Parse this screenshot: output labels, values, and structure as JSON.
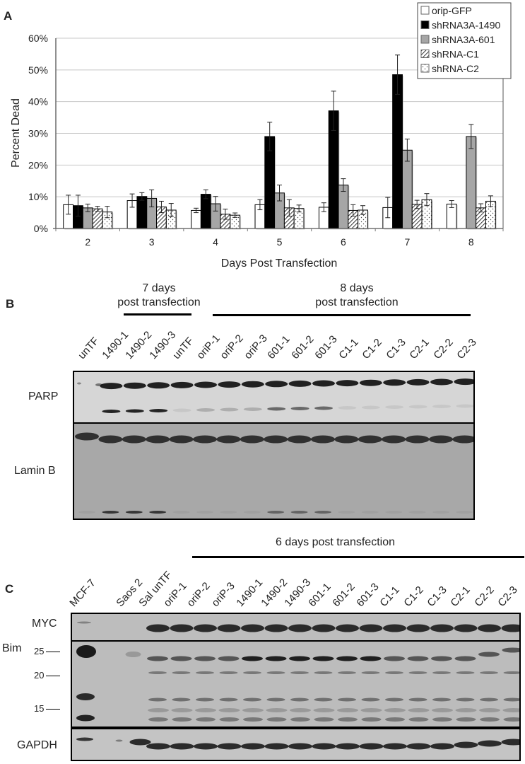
{
  "panels": {
    "a": {
      "letter": "A"
    },
    "b": {
      "letter": "B",
      "groups": [
        {
          "line1": "7 days",
          "line2": "post transfection"
        },
        {
          "line1": "8 days",
          "line2": "post transfection"
        }
      ],
      "lanes": [
        "unTF",
        "1490-1",
        "1490-2",
        "1490-3",
        "unTF",
        "oriP-1",
        "oriP-2",
        "oriP-3",
        "601-1",
        "601-2",
        "601-3",
        "C1-1",
        "C1-2",
        "C1-3",
        "C2-1",
        "C2-2",
        "C2-3"
      ],
      "blots": [
        {
          "label": "PARP"
        },
        {
          "label": "Lamin B"
        }
      ]
    },
    "c": {
      "letter": "C",
      "group": "6 days post transfection",
      "lanes": [
        "MCF-7",
        "Saos 2",
        "Sal unTF",
        "oriP-1",
        "oriP-2",
        "oriP-3",
        "1490-1",
        "1490-2",
        "1490-3",
        "601-1",
        "601-2",
        "601-3",
        "C1-1",
        "C1-2",
        "C1-3",
        "C2-1",
        "C2-2",
        "C2-3"
      ],
      "blots": [
        {
          "label": "MYC"
        },
        {
          "label": "Bim",
          "markers": [
            "25",
            "20",
            "15"
          ]
        },
        {
          "label": "GAPDH"
        }
      ]
    }
  },
  "chart_data": {
    "type": "bar",
    "title": "",
    "xlabel": "Days Post Transfection",
    "ylabel": "Percent Dead",
    "categories": [
      "2",
      "3",
      "4",
      "5",
      "6",
      "7",
      "8"
    ],
    "ylim": [
      0,
      60
    ],
    "yticks": [
      "0%",
      "10%",
      "20%",
      "30%",
      "40%",
      "50%",
      "60%"
    ],
    "grid": true,
    "legend_position": "top-right",
    "series": [
      {
        "name": "orip-GFP",
        "pattern": "white",
        "values": [
          7.5,
          8.8,
          5.7,
          7.5,
          6.7,
          6.6,
          7.7
        ],
        "errors": [
          3.0,
          2.1,
          0.7,
          1.6,
          1.4,
          3.2,
          1.1
        ]
      },
      {
        "name": "shRNA3A-1490",
        "pattern": "black",
        "values": [
          7.2,
          10.1,
          10.8,
          29.0,
          37.1,
          48.5,
          null
        ],
        "errors": [
          3.3,
          1.2,
          1.4,
          4.5,
          6.2,
          6.2,
          null
        ]
      },
      {
        "name": "shRNA3A-601",
        "pattern": "gray",
        "values": [
          6.5,
          9.5,
          7.8,
          11.2,
          13.7,
          24.7,
          29.0
        ],
        "errors": [
          1.2,
          2.7,
          2.3,
          2.5,
          2.0,
          3.5,
          3.8
        ]
      },
      {
        "name": "shRNA-C1",
        "pattern": "hatch",
        "values": [
          6.2,
          6.8,
          4.5,
          6.5,
          5.7,
          7.6,
          6.5
        ],
        "errors": [
          0.8,
          1.8,
          1.6,
          2.6,
          1.8,
          1.3,
          1.3
        ]
      },
      {
        "name": "shRNA-C2",
        "pattern": "dots",
        "values": [
          5.2,
          5.8,
          4.2,
          6.3,
          5.8,
          9.1,
          8.6
        ],
        "errors": [
          1.8,
          2.1,
          0.7,
          1.1,
          1.4,
          1.9,
          1.7
        ]
      }
    ]
  }
}
